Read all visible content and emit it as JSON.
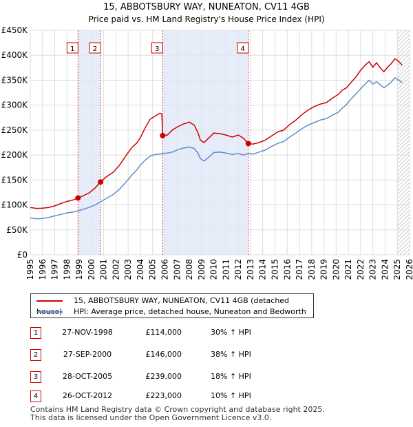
{
  "title_line1": "15, ABBOTSBURY WAY, NUNEATON, CV11 4GB",
  "title_line2": "Price paid vs. HM Land Registry's House Price Index (HPI)",
  "chart_data": {
    "type": "line",
    "title": "15, ABBOTSBURY WAY, NUNEATON, CV11 4GB — Price paid vs. HM Land Registry's House Price Index (HPI)",
    "xlim": [
      1995,
      2026
    ],
    "ylim": [
      0,
      450000
    ],
    "y_ticks": [
      {
        "value": 0,
        "label": "£0"
      },
      {
        "value": 50000,
        "label": "£50K"
      },
      {
        "value": 100000,
        "label": "£100K"
      },
      {
        "value": 150000,
        "label": "£150K"
      },
      {
        "value": 200000,
        "label": "£200K"
      },
      {
        "value": 250000,
        "label": "£250K"
      },
      {
        "value": 300000,
        "label": "£300K"
      },
      {
        "value": 350000,
        "label": "£350K"
      },
      {
        "value": 400000,
        "label": "£400K"
      },
      {
        "value": 450000,
        "label": "£450K"
      }
    ],
    "x_ticks": [
      "1995",
      "1996",
      "1997",
      "1998",
      "1999",
      "2000",
      "2001",
      "2002",
      "2003",
      "2004",
      "2005",
      "2006",
      "2007",
      "2008",
      "2009",
      "2010",
      "2011",
      "2012",
      "2013",
      "2014",
      "2015",
      "2016",
      "2017",
      "2018",
      "2019",
      "2020",
      "2021",
      "2022",
      "2023",
      "2024",
      "2025",
      "2026"
    ],
    "shaded_periods": [
      [
        1998.9,
        2000.74
      ],
      [
        2005.82,
        2012.82
      ]
    ],
    "hatched_after": 2025.0,
    "series": [
      {
        "name": "15, ABBOTSBURY WAY, NUNEATON, CV11 4GB (detached house)",
        "color": "#cc0000",
        "points": [
          [
            1995.0,
            95000
          ],
          [
            1995.5,
            93000
          ],
          [
            1996.0,
            93500
          ],
          [
            1996.5,
            95000
          ],
          [
            1997.0,
            98000
          ],
          [
            1997.5,
            103000
          ],
          [
            1998.0,
            107000
          ],
          [
            1998.5,
            110000
          ],
          [
            1998.9,
            114000
          ],
          [
            1999.3,
            118000
          ],
          [
            1999.8,
            124000
          ],
          [
            2000.3,
            134000
          ],
          [
            2000.74,
            146000
          ],
          [
            2001.2,
            156000
          ],
          [
            2001.8,
            166000
          ],
          [
            2002.3,
            180000
          ],
          [
            2002.8,
            198000
          ],
          [
            2003.3,
            215000
          ],
          [
            2003.7,
            224000
          ],
          [
            2004.0,
            235000
          ],
          [
            2004.4,
            255000
          ],
          [
            2004.8,
            272000
          ],
          [
            2005.2,
            278000
          ],
          [
            2005.6,
            284000
          ],
          [
            2005.75,
            282000
          ],
          [
            2005.82,
            239000
          ],
          [
            2006.2,
            240000
          ],
          [
            2006.6,
            250000
          ],
          [
            2007.0,
            256000
          ],
          [
            2007.5,
            262000
          ],
          [
            2008.0,
            266000
          ],
          [
            2008.4,
            260000
          ],
          [
            2008.7,
            245000
          ],
          [
            2008.9,
            230000
          ],
          [
            2009.2,
            225000
          ],
          [
            2009.5,
            232000
          ],
          [
            2010.0,
            244000
          ],
          [
            2010.5,
            243000
          ],
          [
            2011.0,
            240000
          ],
          [
            2011.5,
            236000
          ],
          [
            2012.0,
            240000
          ],
          [
            2012.4,
            234000
          ],
          [
            2012.82,
            223000
          ],
          [
            2013.2,
            222000
          ],
          [
            2013.7,
            225000
          ],
          [
            2014.2,
            230000
          ],
          [
            2014.7,
            238000
          ],
          [
            2015.2,
            246000
          ],
          [
            2015.7,
            250000
          ],
          [
            2016.2,
            261000
          ],
          [
            2016.7,
            270000
          ],
          [
            2017.2,
            281000
          ],
          [
            2017.7,
            290000
          ],
          [
            2018.2,
            297000
          ],
          [
            2018.7,
            302000
          ],
          [
            2019.2,
            305000
          ],
          [
            2019.7,
            314000
          ],
          [
            2020.2,
            322000
          ],
          [
            2020.5,
            330000
          ],
          [
            2020.8,
            334000
          ],
          [
            2021.2,
            345000
          ],
          [
            2021.6,
            356000
          ],
          [
            2022.0,
            370000
          ],
          [
            2022.4,
            381000
          ],
          [
            2022.7,
            387000
          ],
          [
            2023.0,
            376000
          ],
          [
            2023.3,
            385000
          ],
          [
            2023.6,
            375000
          ],
          [
            2023.9,
            367000
          ],
          [
            2024.2,
            376000
          ],
          [
            2024.5,
            383000
          ],
          [
            2024.8,
            393000
          ],
          [
            2025.1,
            388000
          ],
          [
            2025.4,
            380000
          ]
        ]
      },
      {
        "name": "HPI: Average price, detached house, Nuneaton and Bedworth",
        "color": "#5b8ecc",
        "points": [
          [
            1995.0,
            74000
          ],
          [
            1995.5,
            72000
          ],
          [
            1996.0,
            73000
          ],
          [
            1996.5,
            75000
          ],
          [
            1997.0,
            78000
          ],
          [
            1997.5,
            81000
          ],
          [
            1998.0,
            84000
          ],
          [
            1998.5,
            86000
          ],
          [
            1998.9,
            88000
          ],
          [
            1999.3,
            91000
          ],
          [
            1999.8,
            95000
          ],
          [
            2000.3,
            100000
          ],
          [
            2000.74,
            106000
          ],
          [
            2001.2,
            113000
          ],
          [
            2001.8,
            121000
          ],
          [
            2002.3,
            132000
          ],
          [
            2002.8,
            145000
          ],
          [
            2003.3,
            160000
          ],
          [
            2003.7,
            170000
          ],
          [
            2004.0,
            180000
          ],
          [
            2004.4,
            190000
          ],
          [
            2004.8,
            198000
          ],
          [
            2005.2,
            201000
          ],
          [
            2005.6,
            202000
          ],
          [
            2005.82,
            203000
          ],
          [
            2006.2,
            204000
          ],
          [
            2006.6,
            206000
          ],
          [
            2007.0,
            210000
          ],
          [
            2007.5,
            214000
          ],
          [
            2008.0,
            216000
          ],
          [
            2008.4,
            213000
          ],
          [
            2008.7,
            204000
          ],
          [
            2008.9,
            193000
          ],
          [
            2009.2,
            188000
          ],
          [
            2009.5,
            194000
          ],
          [
            2010.0,
            205000
          ],
          [
            2010.5,
            206000
          ],
          [
            2011.0,
            204000
          ],
          [
            2011.5,
            201000
          ],
          [
            2012.0,
            203000
          ],
          [
            2012.4,
            200000
          ],
          [
            2012.82,
            203000
          ],
          [
            2013.2,
            202000
          ],
          [
            2013.7,
            206000
          ],
          [
            2014.2,
            210000
          ],
          [
            2014.7,
            217000
          ],
          [
            2015.2,
            223000
          ],
          [
            2015.7,
            227000
          ],
          [
            2016.2,
            236000
          ],
          [
            2016.7,
            244000
          ],
          [
            2017.2,
            253000
          ],
          [
            2017.7,
            260000
          ],
          [
            2018.2,
            265000
          ],
          [
            2018.7,
            270000
          ],
          [
            2019.2,
            273000
          ],
          [
            2019.7,
            280000
          ],
          [
            2020.2,
            286000
          ],
          [
            2020.5,
            294000
          ],
          [
            2020.8,
            300000
          ],
          [
            2021.2,
            312000
          ],
          [
            2021.6,
            322000
          ],
          [
            2022.0,
            333000
          ],
          [
            2022.4,
            343000
          ],
          [
            2022.7,
            350000
          ],
          [
            2023.0,
            342000
          ],
          [
            2023.3,
            347000
          ],
          [
            2023.6,
            341000
          ],
          [
            2023.9,
            335000
          ],
          [
            2024.2,
            340000
          ],
          [
            2024.5,
            346000
          ],
          [
            2024.8,
            355000
          ],
          [
            2025.1,
            350000
          ],
          [
            2025.4,
            345000
          ]
        ]
      }
    ],
    "markers": [
      {
        "label": "1",
        "date": 1998.9,
        "value": 114000
      },
      {
        "label": "2",
        "date": 2000.74,
        "value": 146000
      },
      {
        "label": "3",
        "date": 2005.82,
        "value": 239000
      },
      {
        "label": "4",
        "date": 2012.82,
        "value": 223000
      }
    ]
  },
  "legend": {
    "items": [
      {
        "label": "15, ABBOTSBURY WAY, NUNEATON, CV11 4GB (detached house)",
        "color": "#cc0000"
      },
      {
        "label": "HPI: Average price, detached house, Nuneaton and Bedworth",
        "color": "#5b8ecc"
      }
    ]
  },
  "sales": [
    {
      "num": "1",
      "date": "27-NOV-1998",
      "price": "£114,000",
      "pct": "30% ↑ HPI"
    },
    {
      "num": "2",
      "date": "27-SEP-2000",
      "price": "£146,000",
      "pct": "38% ↑ HPI"
    },
    {
      "num": "3",
      "date": "28-OCT-2005",
      "price": "£239,000",
      "pct": "18% ↑ HPI"
    },
    {
      "num": "4",
      "date": "26-OCT-2012",
      "price": "£223,000",
      "pct": "10% ↑ HPI"
    }
  ],
  "footer": {
    "line1": "Contains HM Land Registry data © Crown copyright and database right 2025.",
    "line2": "This data is licensed under the Open Government Licence v3.0."
  }
}
